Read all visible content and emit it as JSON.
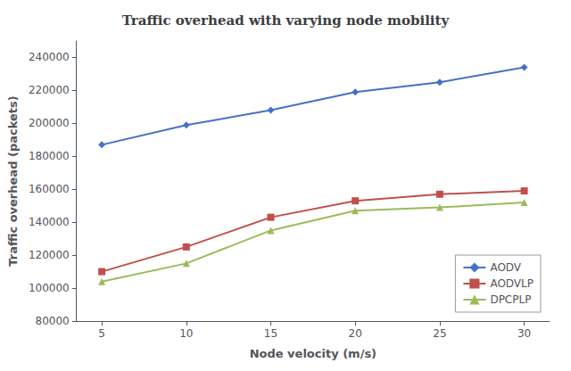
{
  "chart_data": {
    "type": "line",
    "title": "Traffic overhead with varying node mobility",
    "xlabel": "Node velocity (m/s)",
    "ylabel": "Traffic overhead (packets)",
    "x": [
      5,
      10,
      15,
      20,
      25,
      30
    ],
    "series": [
      {
        "name": "AODV",
        "color": "#4472C4",
        "marker": "diamond",
        "values": [
          187000,
          199000,
          208000,
          219000,
          225000,
          234000
        ]
      },
      {
        "name": "AODVLP",
        "color": "#C0504D",
        "marker": "square",
        "values": [
          110000,
          125000,
          143000,
          153000,
          157000,
          159000
        ]
      },
      {
        "name": "DPCPLP",
        "color": "#9BBB59",
        "marker": "triangle",
        "values": [
          104000,
          115000,
          135000,
          147000,
          149000,
          152000
        ]
      }
    ],
    "xlim": [
      3.5,
      31.5
    ],
    "xticks": [
      5,
      10,
      15,
      20,
      25,
      30
    ],
    "ylim": [
      80000,
      250000
    ],
    "yticks": [
      80000,
      100000,
      120000,
      140000,
      160000,
      180000,
      200000,
      220000,
      240000
    ],
    "grid": false,
    "legend": "lower right"
  }
}
